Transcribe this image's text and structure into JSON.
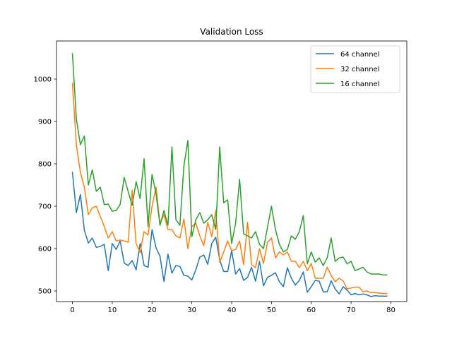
{
  "chart_data": {
    "type": "line",
    "title": "Validation Loss",
    "xlabel": "",
    "ylabel": "",
    "xlim": [
      -4,
      84
    ],
    "ylim": [
      475,
      1090
    ],
    "xticks": [
      0,
      10,
      20,
      30,
      40,
      50,
      60,
      70,
      80
    ],
    "yticks": [
      500,
      600,
      700,
      800,
      900,
      1000
    ],
    "grid": false,
    "legend_position": "top-right",
    "series": [
      {
        "name": "64 channel",
        "color": "#1f77b4",
        "x": [
          0,
          1,
          2,
          3,
          4,
          5,
          6,
          7,
          8,
          9,
          10,
          11,
          12,
          13,
          14,
          15,
          16,
          17,
          18,
          19,
          20,
          21,
          22,
          23,
          24,
          25,
          26,
          27,
          28,
          29,
          30,
          31,
          32,
          33,
          34,
          35,
          36,
          37,
          38,
          39,
          40,
          41,
          42,
          43,
          44,
          45,
          46,
          47,
          48,
          49,
          50,
          51,
          52,
          53,
          54,
          55,
          56,
          57,
          58,
          59,
          60,
          61,
          62,
          63,
          64,
          65,
          66,
          67,
          68,
          69,
          70,
          71,
          72,
          73,
          74,
          75,
          76,
          77,
          78,
          79
        ],
        "values": [
          780,
          685,
          728,
          643,
          613,
          625,
          603,
          605,
          610,
          548,
          612,
          598,
          618,
          566,
          560,
          572,
          550,
          612,
          560,
          556,
          645,
          602,
          582,
          522,
          587,
          542,
          560,
          558,
          537,
          535,
          526,
          550,
          580,
          585,
          563,
          612,
          627,
          573,
          546,
          546,
          595,
          540,
          553,
          525,
          532,
          556,
          523,
          570,
          512,
          532,
          537,
          543,
          522,
          510,
          555,
          530,
          514,
          525,
          545,
          497,
          510,
          525,
          523,
          498,
          498,
          524,
          505,
          493,
          510,
          502,
          491,
          494,
          491,
          493,
          491,
          487,
          489,
          488,
          488,
          488
        ]
      },
      {
        "name": "32 channel",
        "color": "#ff7f0e",
        "x": [
          0,
          1,
          2,
          3,
          4,
          5,
          6,
          7,
          8,
          9,
          10,
          11,
          12,
          13,
          14,
          15,
          16,
          17,
          18,
          19,
          20,
          21,
          22,
          23,
          24,
          25,
          26,
          27,
          28,
          29,
          30,
          31,
          32,
          33,
          34,
          35,
          36,
          37,
          38,
          39,
          40,
          41,
          42,
          43,
          44,
          45,
          46,
          47,
          48,
          49,
          50,
          51,
          52,
          53,
          54,
          55,
          56,
          57,
          58,
          59,
          60,
          61,
          62,
          63,
          64,
          65,
          66,
          67,
          68,
          69,
          70,
          71,
          72,
          73,
          74,
          75,
          76,
          77,
          78,
          79
        ],
        "values": [
          990,
          845,
          780,
          745,
          680,
          696,
          700,
          676,
          652,
          625,
          640,
          618,
          620,
          618,
          615,
          738,
          612,
          590,
          640,
          632,
          700,
          745,
          658,
          680,
          645,
          645,
          630,
          625,
          670,
          600,
          652,
          660,
          630,
          607,
          662,
          628,
          690,
          568,
          592,
          618,
          595,
          598,
          618,
          562,
          662,
          562,
          555,
          600,
          565,
          615,
          625,
          578,
          592,
          585,
          592,
          570,
          570,
          555,
          570,
          548,
          565,
          530,
          530,
          530,
          556,
          537,
          522,
          530,
          524,
          505,
          507,
          509,
          509,
          498,
          500,
          496,
          496,
          495,
          494,
          494
        ]
      },
      {
        "name": "16 channel",
        "color": "#2ca02c",
        "x": [
          0,
          1,
          2,
          3,
          4,
          5,
          6,
          7,
          8,
          9,
          10,
          11,
          12,
          13,
          14,
          15,
          16,
          17,
          18,
          19,
          20,
          21,
          22,
          23,
          24,
          25,
          26,
          27,
          28,
          29,
          30,
          31,
          32,
          33,
          34,
          35,
          36,
          37,
          38,
          39,
          40,
          41,
          42,
          43,
          44,
          45,
          46,
          47,
          48,
          49,
          50,
          51,
          52,
          53,
          54,
          55,
          56,
          57,
          58,
          59,
          60,
          61,
          62,
          63,
          64,
          65,
          66,
          67,
          68,
          69,
          70,
          71,
          72,
          73,
          74,
          75,
          76,
          77,
          78,
          79
        ],
        "values": [
          1060,
          905,
          845,
          866,
          750,
          786,
          735,
          745,
          704,
          705,
          688,
          690,
          704,
          768,
          735,
          702,
          758,
          718,
          812,
          652,
          775,
          730,
          655,
          690,
          655,
          840,
          668,
          655,
          795,
          855,
          628,
          668,
          685,
          660,
          668,
          680,
          645,
          840,
          708,
          715,
          612,
          660,
          764,
          635,
          630,
          625,
          640,
          610,
          600,
          650,
          700,
          645,
          610,
          592,
          598,
          630,
          622,
          640,
          678,
          564,
          592,
          568,
          578,
          560,
          578,
          625,
          570,
          578,
          580,
          564,
          570,
          548,
          552,
          556,
          545,
          540,
          540,
          540,
          538,
          538
        ]
      }
    ]
  }
}
